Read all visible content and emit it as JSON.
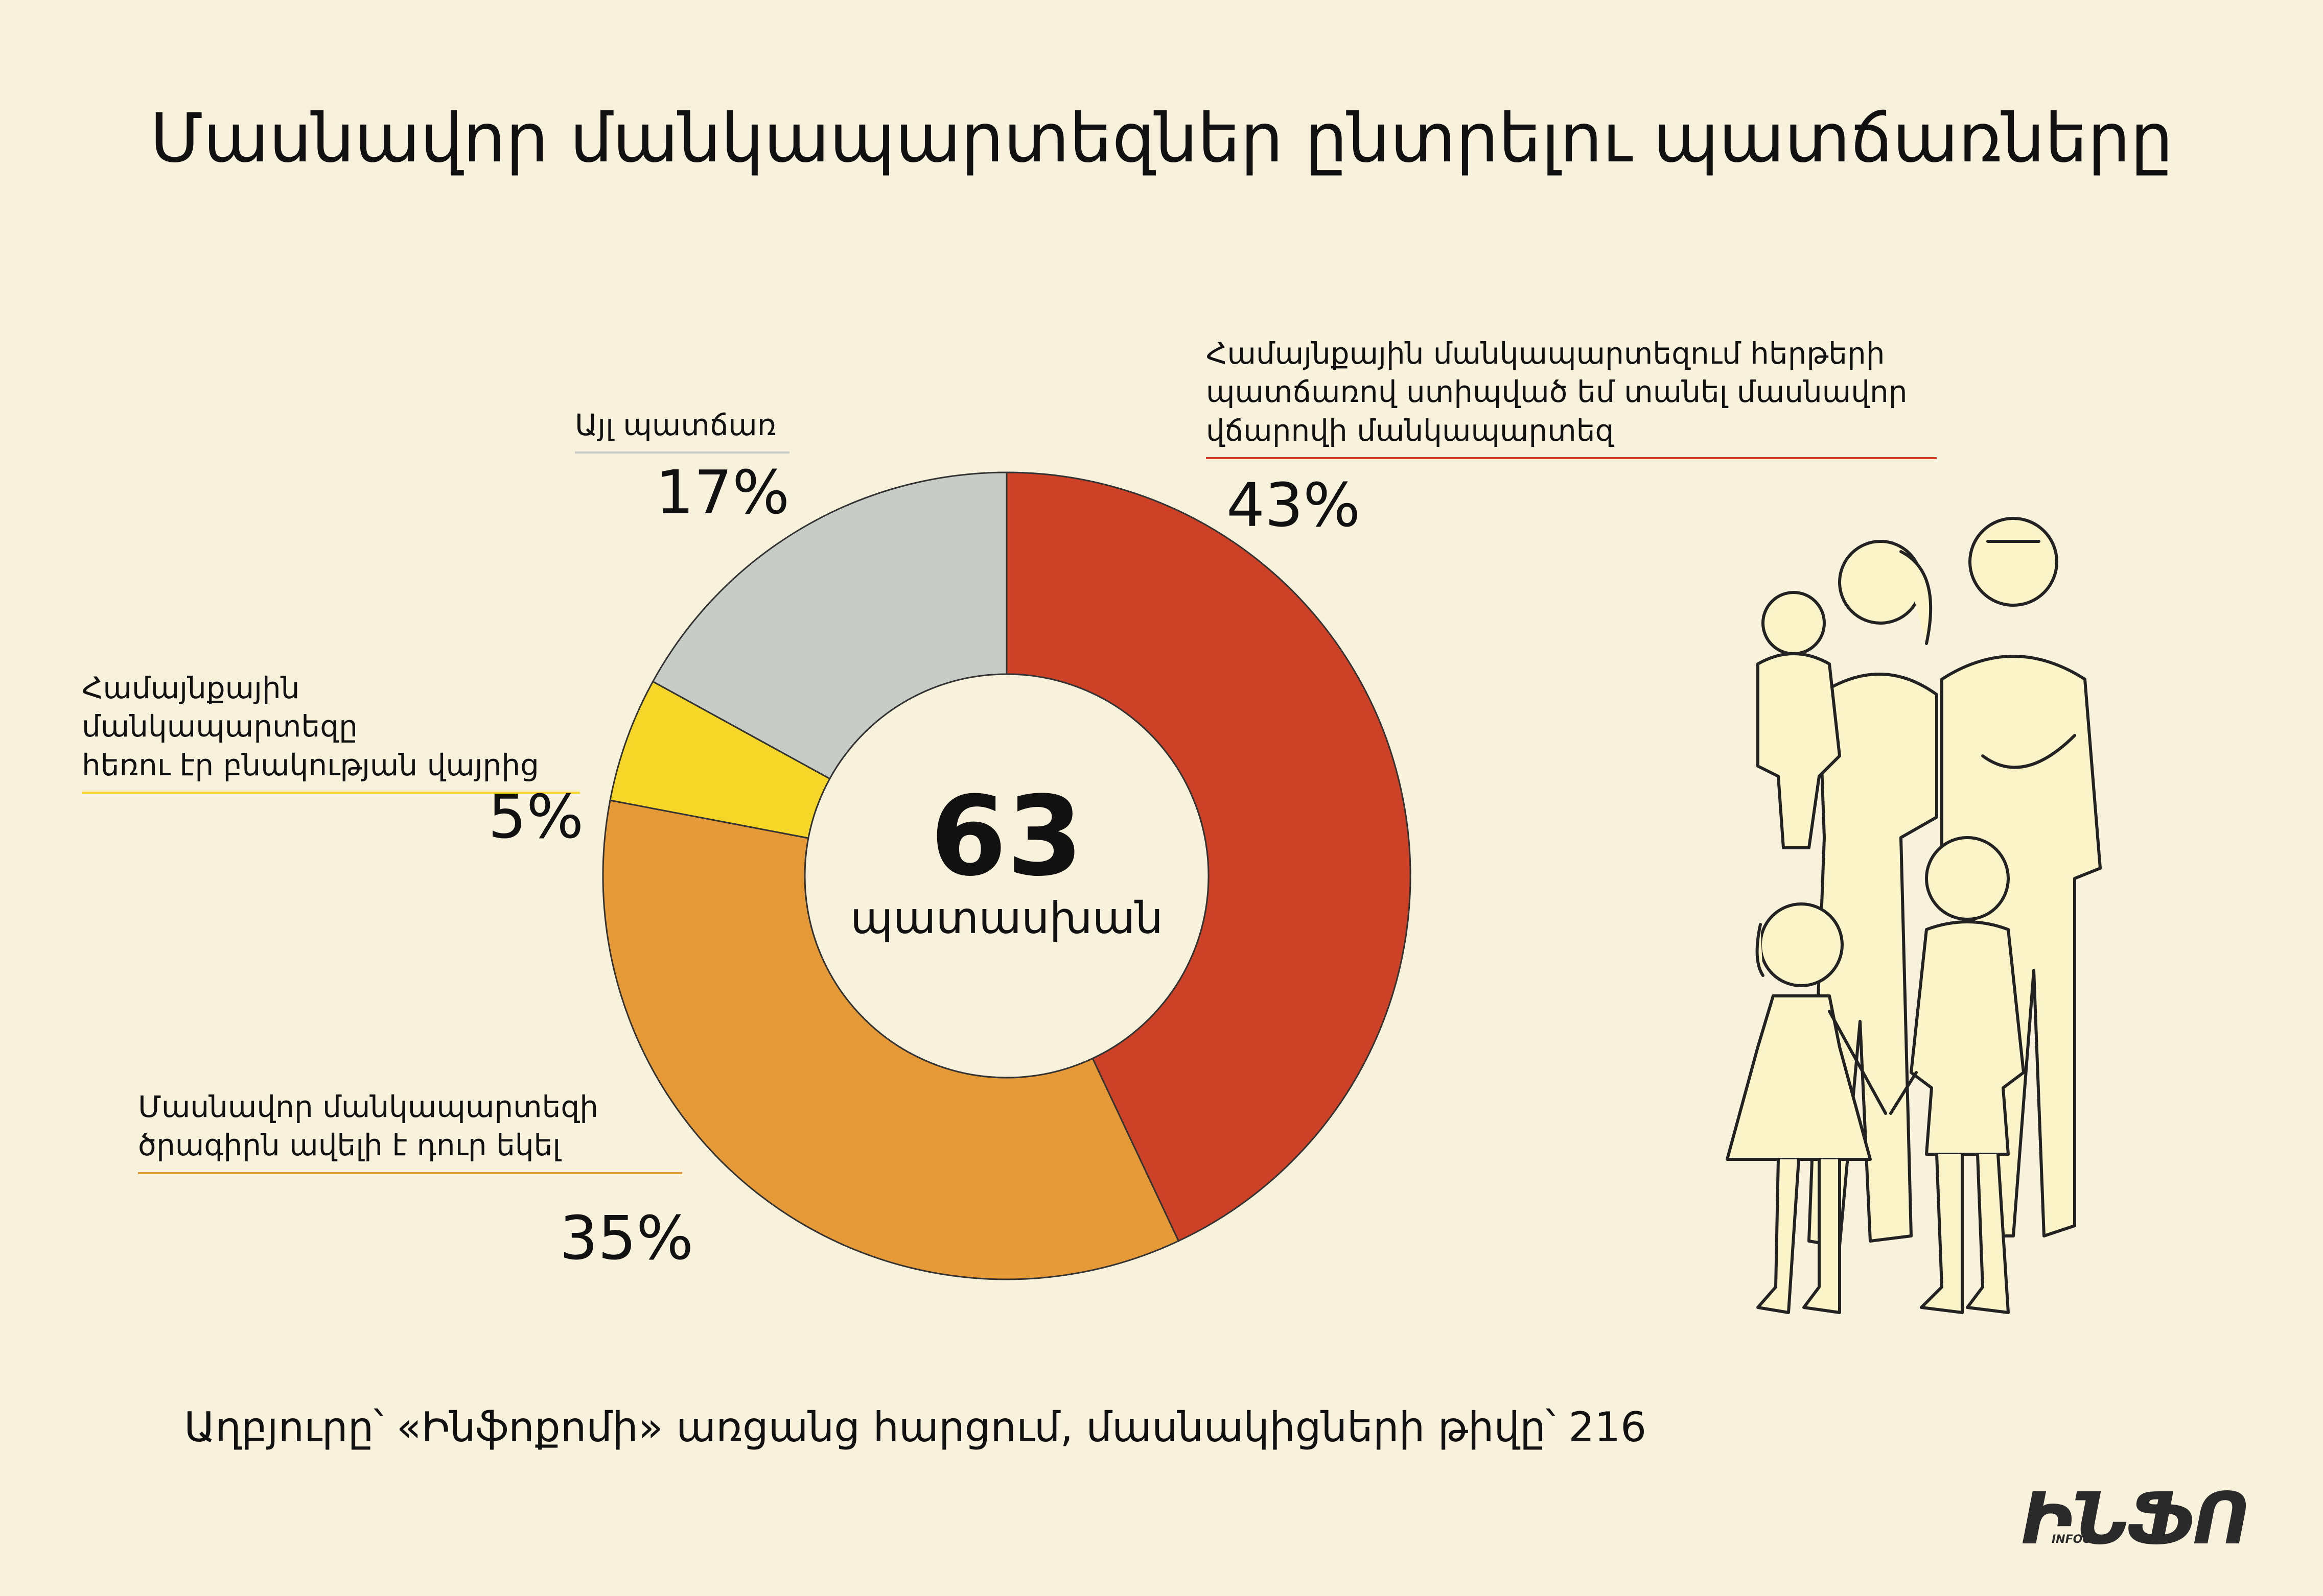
{
  "title": "Մասնավոր մանկապարտեզներ ընտրելու պատճառները",
  "chart_data": {
    "type": "pie",
    "donut": true,
    "center_value": "63",
    "center_label": "պատասխան",
    "slices": [
      {
        "label": "Համայնքային մանկապարտեզում հերթերի\nպատճառով ստիպված եմ տանել մասնավոր\nվճարովի մանկապարտեզ",
        "value": 43,
        "display": "43%",
        "color": "#cd4126"
      },
      {
        "label": "Մասնավոր մանկապարտեզի\nծրագիրն ավելի է դուր եկել",
        "value": 35,
        "display": "35%",
        "color": "#e69937"
      },
      {
        "label": "Համայնքային մանկապարտեզը\nհեռու էր բնակության վայրից",
        "value": 5,
        "display": "5%",
        "color": "#f6d626"
      },
      {
        "label": "Այլ պատճառ",
        "value": 17,
        "display": "17%",
        "color": "#c8ccc7"
      }
    ],
    "label_rule_colors": [
      "#cd4126",
      "#e69937",
      "#f6d626",
      "#c8ccc7"
    ]
  },
  "source": "Աղբյուրը՝ «Ինֆոքոմի» առցանց հարցում, մասնակիցների թիվը՝ 216",
  "logo": {
    "text": "ԻՆՖՈ",
    "subtext": "INFOCOM"
  },
  "illustration": {
    "icon": "family-line-drawing-icon"
  }
}
